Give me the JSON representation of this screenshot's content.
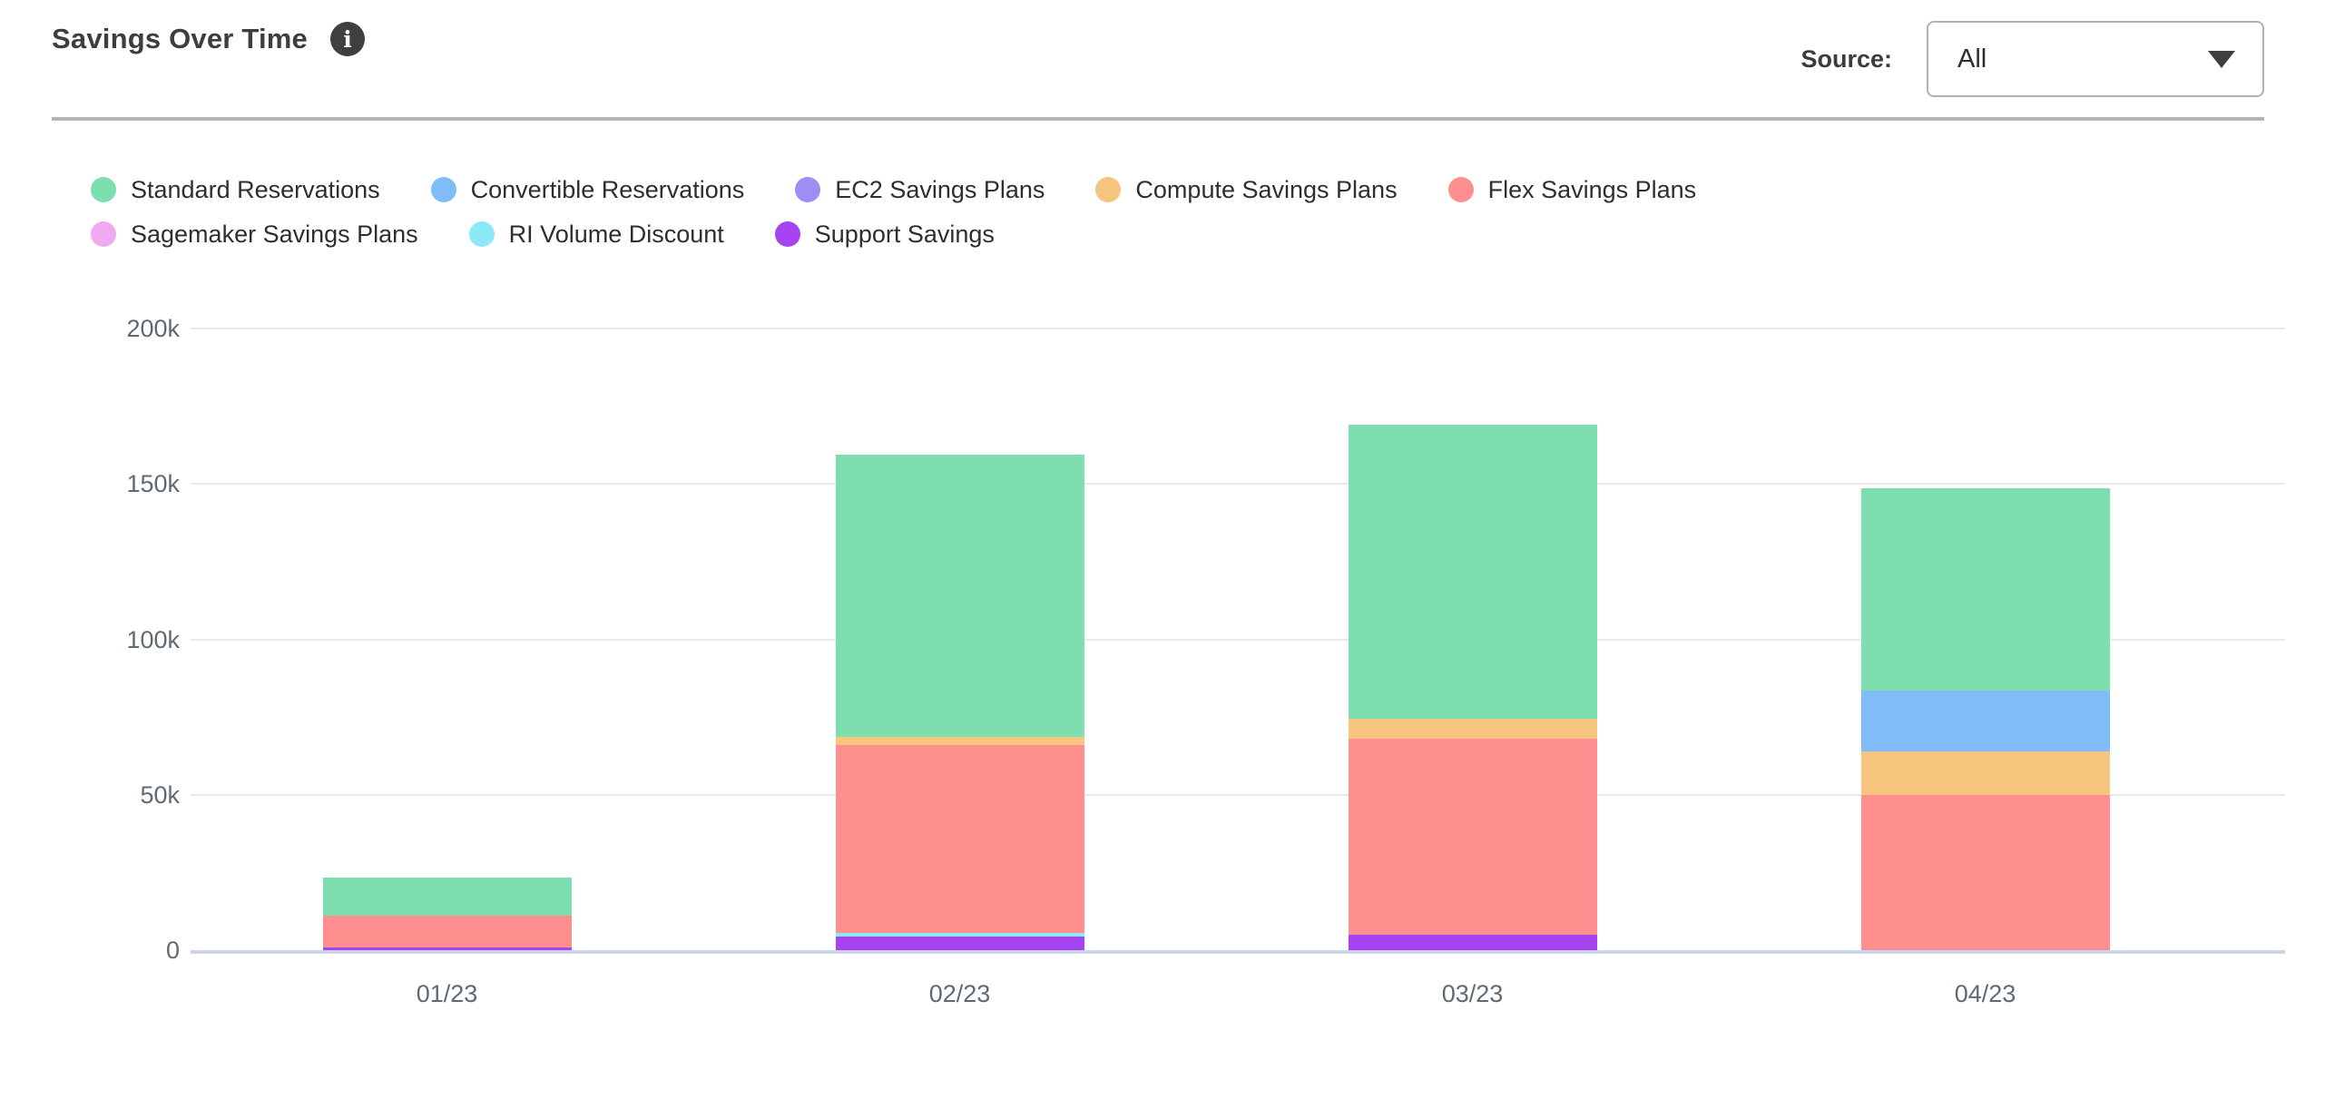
{
  "header": {
    "title": "Savings Over Time",
    "source_label": "Source:",
    "source_value": "All"
  },
  "colors": {
    "title_text": "#3e3e3e",
    "divider": "#b5b5b5",
    "gridline": "#e9e9e9",
    "axis_line": "#ccd3ec",
    "tick_label": "#606a72",
    "legend_text": "#2e2e2e"
  },
  "chart_data": {
    "type": "bar",
    "stacked": true,
    "title": "Savings Over Time",
    "xlabel": "",
    "ylabel": "",
    "ylim": [
      0,
      200000
    ],
    "grid": true,
    "legend_position": "top-left",
    "categories": [
      "01/23",
      "02/23",
      "03/23",
      "04/23"
    ],
    "y_ticks": [
      {
        "value": 0,
        "label": "0"
      },
      {
        "value": 50000,
        "label": "50k"
      },
      {
        "value": 100000,
        "label": "100k"
      },
      {
        "value": 150000,
        "label": "150k"
      },
      {
        "value": 200000,
        "label": "200k"
      }
    ],
    "series": [
      {
        "name": "Standard Reservations",
        "color": "#7ddfb0",
        "values": [
          12500,
          91000,
          94500,
          65000
        ]
      },
      {
        "name": "Convertible Reservations",
        "color": "#80bdf8",
        "values": [
          0,
          0,
          0,
          19500
        ]
      },
      {
        "name": "EC2 Savings Plans",
        "color": "#9d8df5",
        "values": [
          0,
          0,
          0,
          0
        ]
      },
      {
        "name": "Compute Savings Plans",
        "color": "#f8c57f",
        "values": [
          0,
          2500,
          6500,
          14000
        ]
      },
      {
        "name": "Flex Savings Plans",
        "color": "#ff8f8f",
        "values": [
          10000,
          60500,
          63000,
          50000
        ]
      },
      {
        "name": "Sagemaker Savings Plans",
        "color": "#f0abf0",
        "values": [
          0,
          0,
          0,
          0
        ]
      },
      {
        "name": "RI Volume Discount",
        "color": "#8de8f7",
        "values": [
          0,
          1000,
          0,
          0
        ]
      },
      {
        "name": "Support Savings",
        "color": "#a644f2",
        "values": [
          1000,
          4500,
          5000,
          0
        ]
      }
    ],
    "stack_order_bottom_to_top": [
      "Support Savings",
      "RI Volume Discount",
      "Sagemaker Savings Plans",
      "Flex Savings Plans",
      "Compute Savings Plans",
      "EC2 Savings Plans",
      "Convertible Reservations",
      "Standard Reservations"
    ],
    "bar_totals": [
      23500,
      159500,
      169000,
      148500
    ]
  }
}
